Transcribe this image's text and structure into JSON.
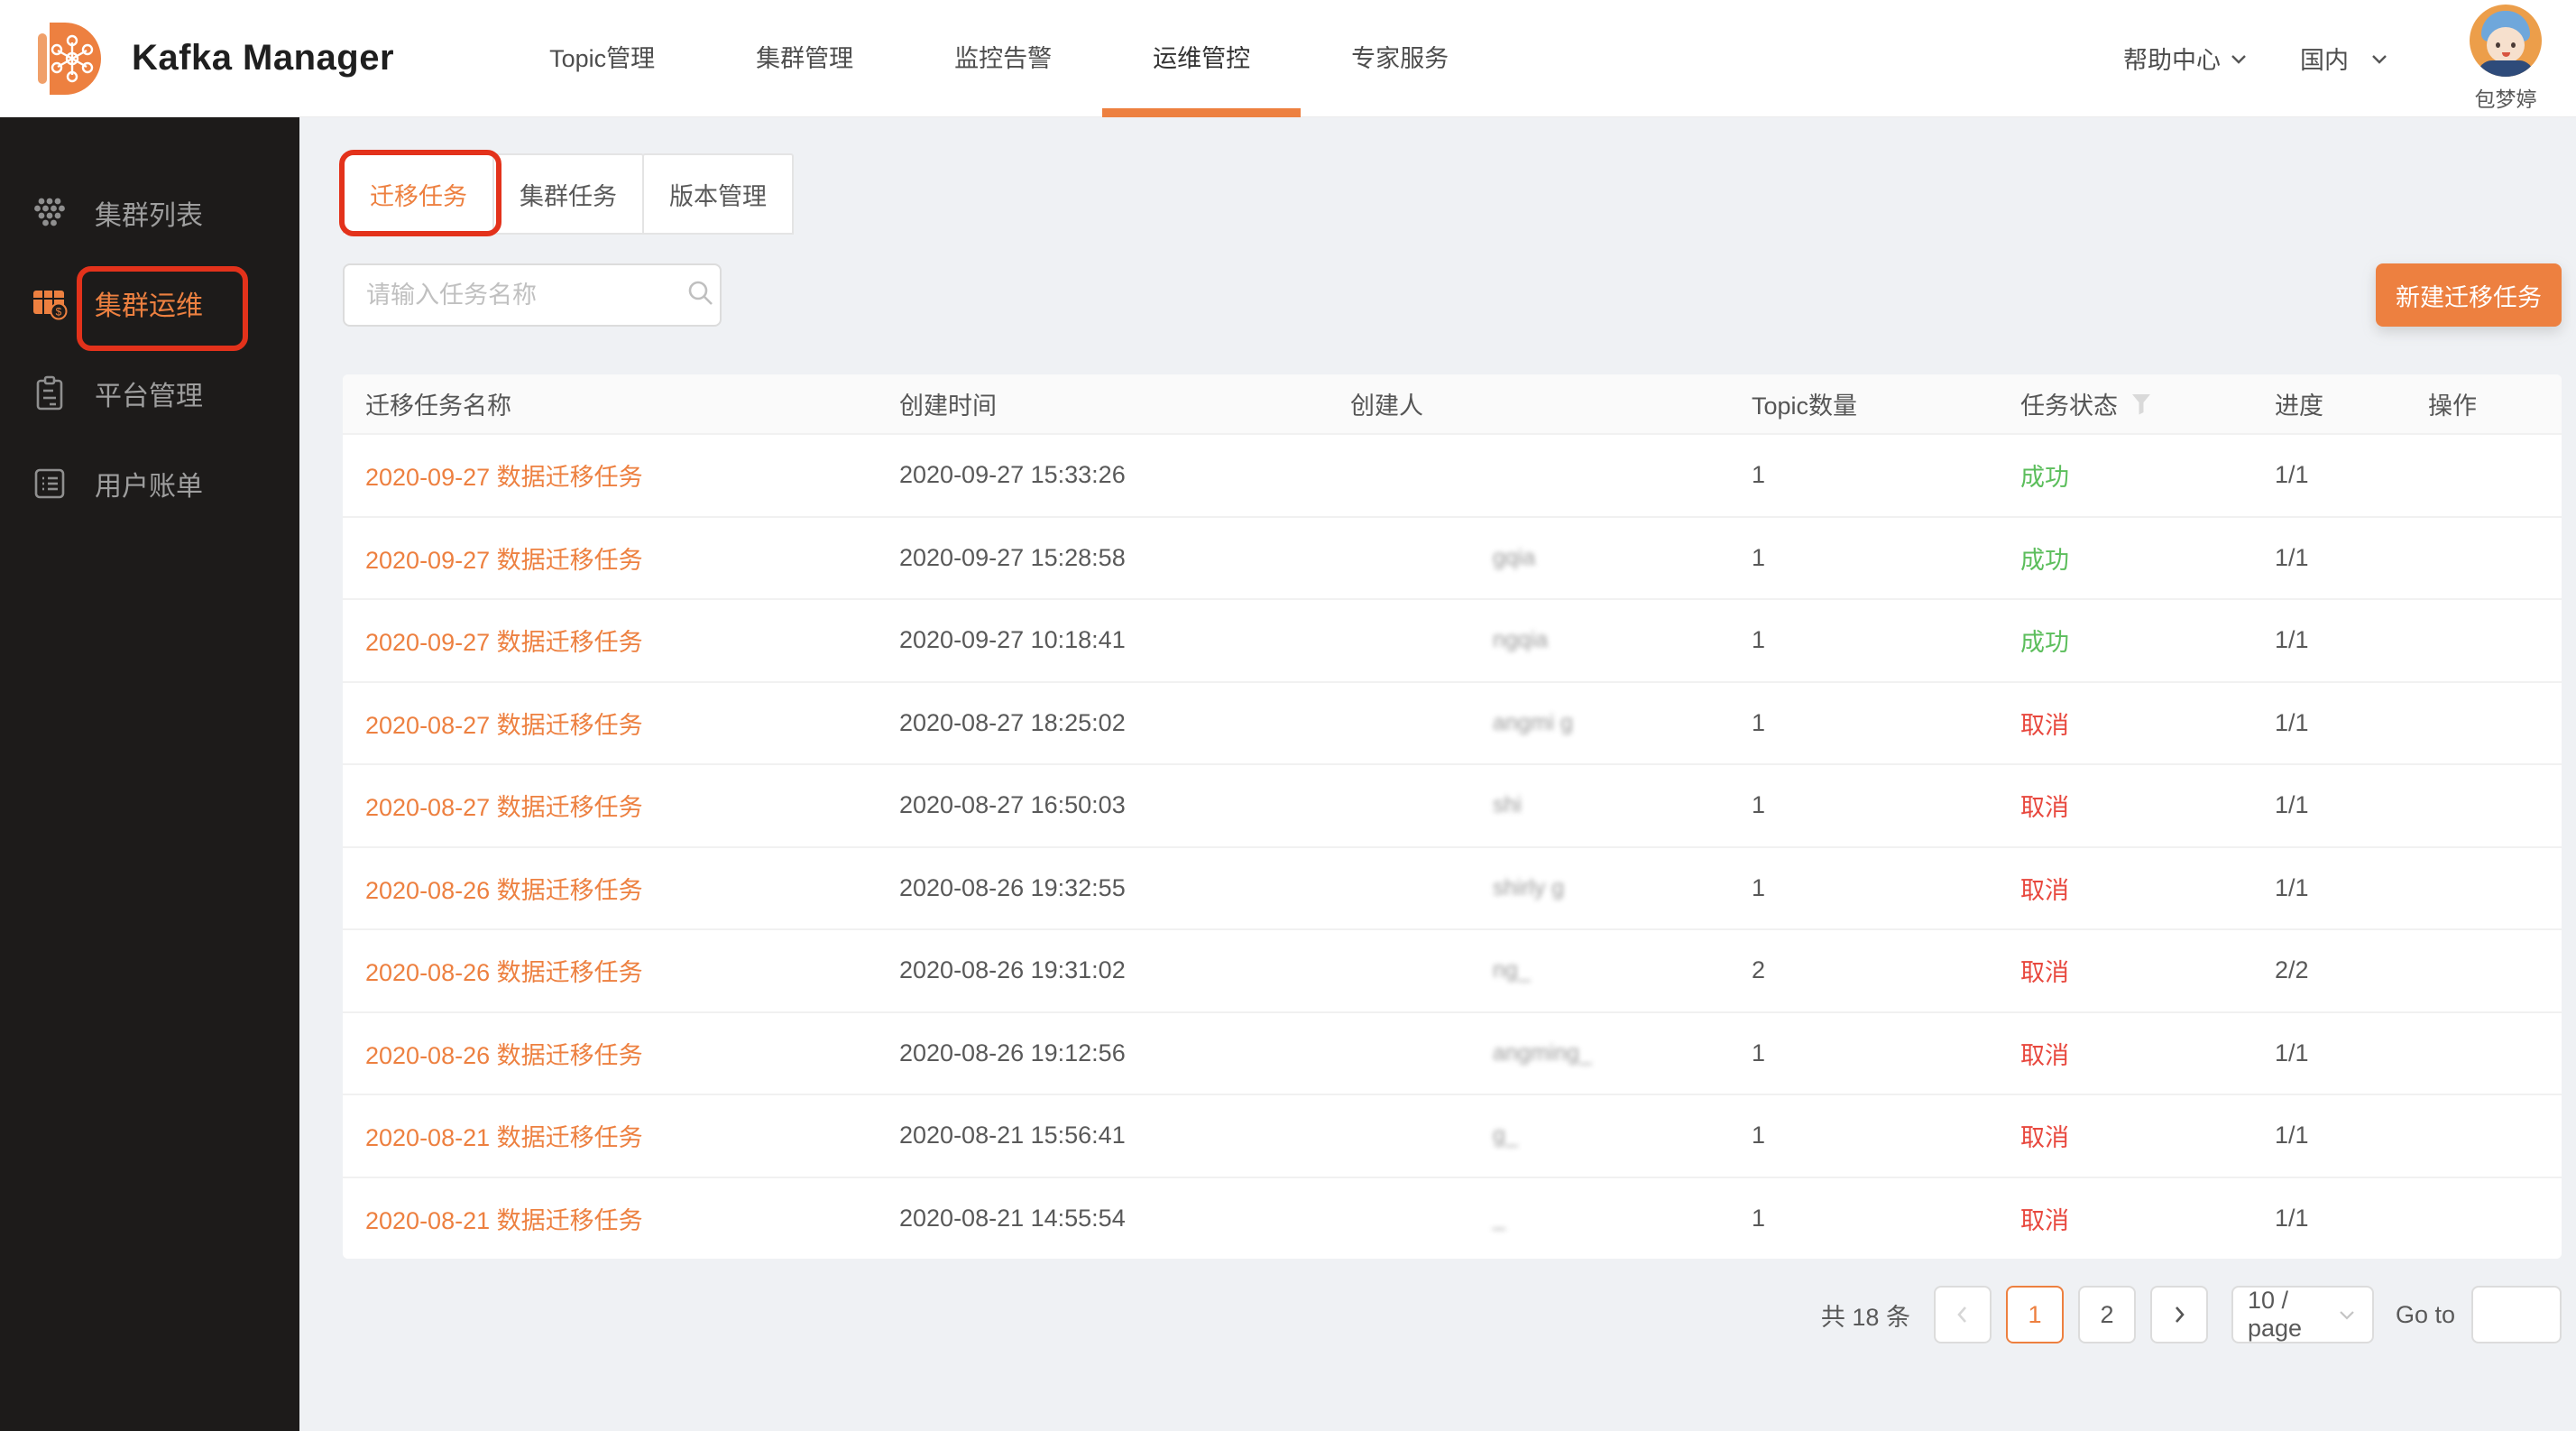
{
  "colors": {
    "accent": "#ED8040",
    "success": "#5cbe5c",
    "danger": "#e8483e",
    "annotation_red": "#e3321b",
    "sidebar_bg": "#1d1b1a"
  },
  "header": {
    "app_title": "Kafka Manager",
    "nav": [
      {
        "label": "Topic管理",
        "active": false
      },
      {
        "label": "集群管理",
        "active": false
      },
      {
        "label": "监控告警",
        "active": false
      },
      {
        "label": "运维管控",
        "active": true
      },
      {
        "label": "专家服务",
        "active": false
      }
    ],
    "help_label": "帮助中心",
    "region_label": "国内",
    "user_name": "包梦婷"
  },
  "sidebar": {
    "items": [
      {
        "label": "集群列表",
        "icon": "honeycomb-icon",
        "active": false,
        "annotated": false
      },
      {
        "label": "集群运维",
        "icon": "ops-table-icon",
        "active": true,
        "annotated": true
      },
      {
        "label": "平台管理",
        "icon": "clipboard-icon",
        "active": false,
        "annotated": false
      },
      {
        "label": "用户账单",
        "icon": "list-icon",
        "active": false,
        "annotated": false
      }
    ]
  },
  "tabs": [
    {
      "label": "迁移任务",
      "active": true,
      "annotated": true
    },
    {
      "label": "集群任务",
      "active": false,
      "annotated": false
    },
    {
      "label": "版本管理",
      "active": false,
      "annotated": false
    }
  ],
  "toolbar": {
    "search_placeholder": "请输入任务名称",
    "new_task_label": "新建迁移任务"
  },
  "table": {
    "columns": [
      {
        "label": "迁移任务名称",
        "filter": false
      },
      {
        "label": "创建时间",
        "filter": false
      },
      {
        "label": "创建人",
        "filter": false
      },
      {
        "label": "Topic数量",
        "filter": false
      },
      {
        "label": "任务状态",
        "filter": true
      },
      {
        "label": "进度",
        "filter": false
      },
      {
        "label": "操作",
        "filter": false
      }
    ],
    "rows": [
      {
        "name": "2020-09-27 数据迁移任务",
        "time": "2020-09-27 15:33:26",
        "creator": "",
        "topics": "1",
        "status": "成功",
        "status_type": "success",
        "progress": "1/1",
        "actions": ""
      },
      {
        "name": "2020-09-27 数据迁移任务",
        "time": "2020-09-27 15:28:58",
        "creator": "gqia",
        "topics": "1",
        "status": "成功",
        "status_type": "success",
        "progress": "1/1",
        "actions": ""
      },
      {
        "name": "2020-09-27 数据迁移任务",
        "time": "2020-09-27 10:18:41",
        "creator": "ngqia",
        "topics": "1",
        "status": "成功",
        "status_type": "success",
        "progress": "1/1",
        "actions": ""
      },
      {
        "name": "2020-08-27 数据迁移任务",
        "time": "2020-08-27 18:25:02",
        "creator": "angmi g",
        "topics": "1",
        "status": "取消",
        "status_type": "cancel",
        "progress": "1/1",
        "actions": ""
      },
      {
        "name": "2020-08-27 数据迁移任务",
        "time": "2020-08-27 16:50:03",
        "creator": "shi",
        "topics": "1",
        "status": "取消",
        "status_type": "cancel",
        "progress": "1/1",
        "actions": ""
      },
      {
        "name": "2020-08-26 数据迁移任务",
        "time": "2020-08-26 19:32:55",
        "creator": "shirly g",
        "topics": "1",
        "status": "取消",
        "status_type": "cancel",
        "progress": "1/1",
        "actions": ""
      },
      {
        "name": "2020-08-26 数据迁移任务",
        "time": "2020-08-26 19:31:02",
        "creator": "ng_",
        "topics": "2",
        "status": "取消",
        "status_type": "cancel",
        "progress": "2/2",
        "actions": ""
      },
      {
        "name": "2020-08-26 数据迁移任务",
        "time": "2020-08-26 19:12:56",
        "creator": "angming_",
        "topics": "1",
        "status": "取消",
        "status_type": "cancel",
        "progress": "1/1",
        "actions": ""
      },
      {
        "name": "2020-08-21 数据迁移任务",
        "time": "2020-08-21 15:56:41",
        "creator": "g_",
        "topics": "1",
        "status": "取消",
        "status_type": "cancel",
        "progress": "1/1",
        "actions": ""
      },
      {
        "name": "2020-08-21 数据迁移任务",
        "time": "2020-08-21 14:55:54",
        "creator": "_",
        "topics": "1",
        "status": "取消",
        "status_type": "cancel",
        "progress": "1/1",
        "actions": ""
      }
    ]
  },
  "pagination": {
    "total_text": "共 18 条",
    "pages": [
      "1",
      "2"
    ],
    "current_page": "1",
    "page_size_label": "10 / page",
    "goto_label": "Go to",
    "goto_value": ""
  }
}
